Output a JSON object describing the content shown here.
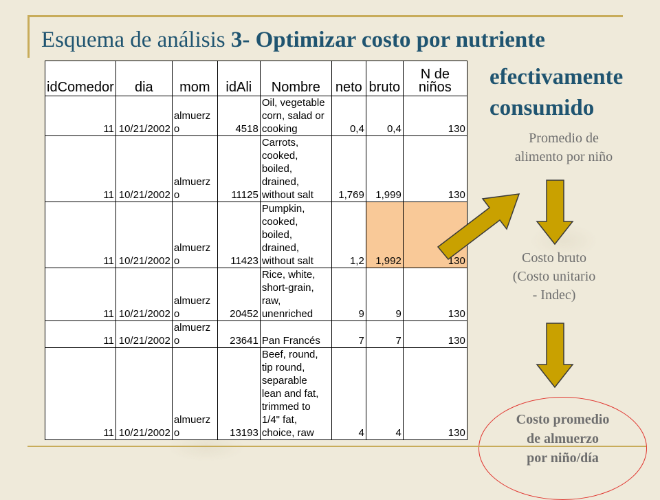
{
  "slide": {
    "title_prefix": "Esquema de análisis ",
    "title_bold": "3- Optimizar costo por nutriente",
    "title_cont_line1": "efectivamente",
    "title_cont_line2": "consumido"
  },
  "table": {
    "headers": [
      "idComedor",
      "dia",
      "mom",
      "idAli",
      "Nombre",
      "neto",
      "bruto",
      "N de niños"
    ],
    "rows": [
      {
        "idComedor": "11",
        "dia": "10/21/2002",
        "mom": [
          "almuerz",
          "o"
        ],
        "idAli": "4518",
        "nombre": [
          "Oil, vegetable",
          "corn, salad or",
          "cooking"
        ],
        "neto": "0,4",
        "bruto": "0,4",
        "n": "130",
        "highlight": false
      },
      {
        "idComedor": "11",
        "dia": "10/21/2002",
        "mom": [
          "almuerz",
          "o"
        ],
        "idAli": "11125",
        "nombre": [
          "Carrots,",
          "cooked,",
          "boiled,",
          "drained,",
          "without salt"
        ],
        "neto": "1,769",
        "bruto": "1,999",
        "n": "130",
        "highlight": false
      },
      {
        "idComedor": "11",
        "dia": "10/21/2002",
        "mom": [
          "almuerz",
          "o"
        ],
        "idAli": "11423",
        "nombre": [
          "Pumpkin,",
          "cooked,",
          "boiled,",
          "drained,",
          "without salt"
        ],
        "neto": "1,2",
        "bruto": "1,992",
        "n": "130",
        "highlight": true
      },
      {
        "idComedor": "11",
        "dia": "10/21/2002",
        "mom": [
          "almuerz",
          "o"
        ],
        "idAli": "20452",
        "nombre": [
          "Rice, white,",
          "short-grain,",
          "raw,",
          "unenriched"
        ],
        "neto": "9",
        "bruto": "9",
        "n": "130",
        "highlight": false
      },
      {
        "idComedor": "11",
        "dia": "10/21/2002",
        "mom": [
          "almuerz",
          "o"
        ],
        "idAli": "23641",
        "nombre": [
          "Pan Francés"
        ],
        "neto": "7",
        "bruto": "7",
        "n": "130",
        "highlight": false
      },
      {
        "idComedor": "11",
        "dia": "10/21/2002",
        "mom": [
          "almuerz",
          "o"
        ],
        "idAli": "13193",
        "nombre": [
          "Beef, round,",
          "tip round,",
          "separable",
          "lean and fat,",
          "trimmed to",
          "1/4\" fat,",
          "choice, raw"
        ],
        "neto": "4",
        "bruto": "4",
        "n": "130",
        "highlight": false
      }
    ]
  },
  "flow": {
    "step1": [
      "Promedio de",
      "alimento por niño"
    ],
    "step2": [
      "Costo bruto",
      "(Costo unitario",
      "- Indec)"
    ],
    "step3": [
      "Costo promedio",
      "de almuerzo",
      "por  niño/día"
    ]
  },
  "colors": {
    "title": "#1f5470",
    "arrow_fill": "#c9a100",
    "highlight": "#f9c998",
    "ellipse": "#e0302a"
  }
}
